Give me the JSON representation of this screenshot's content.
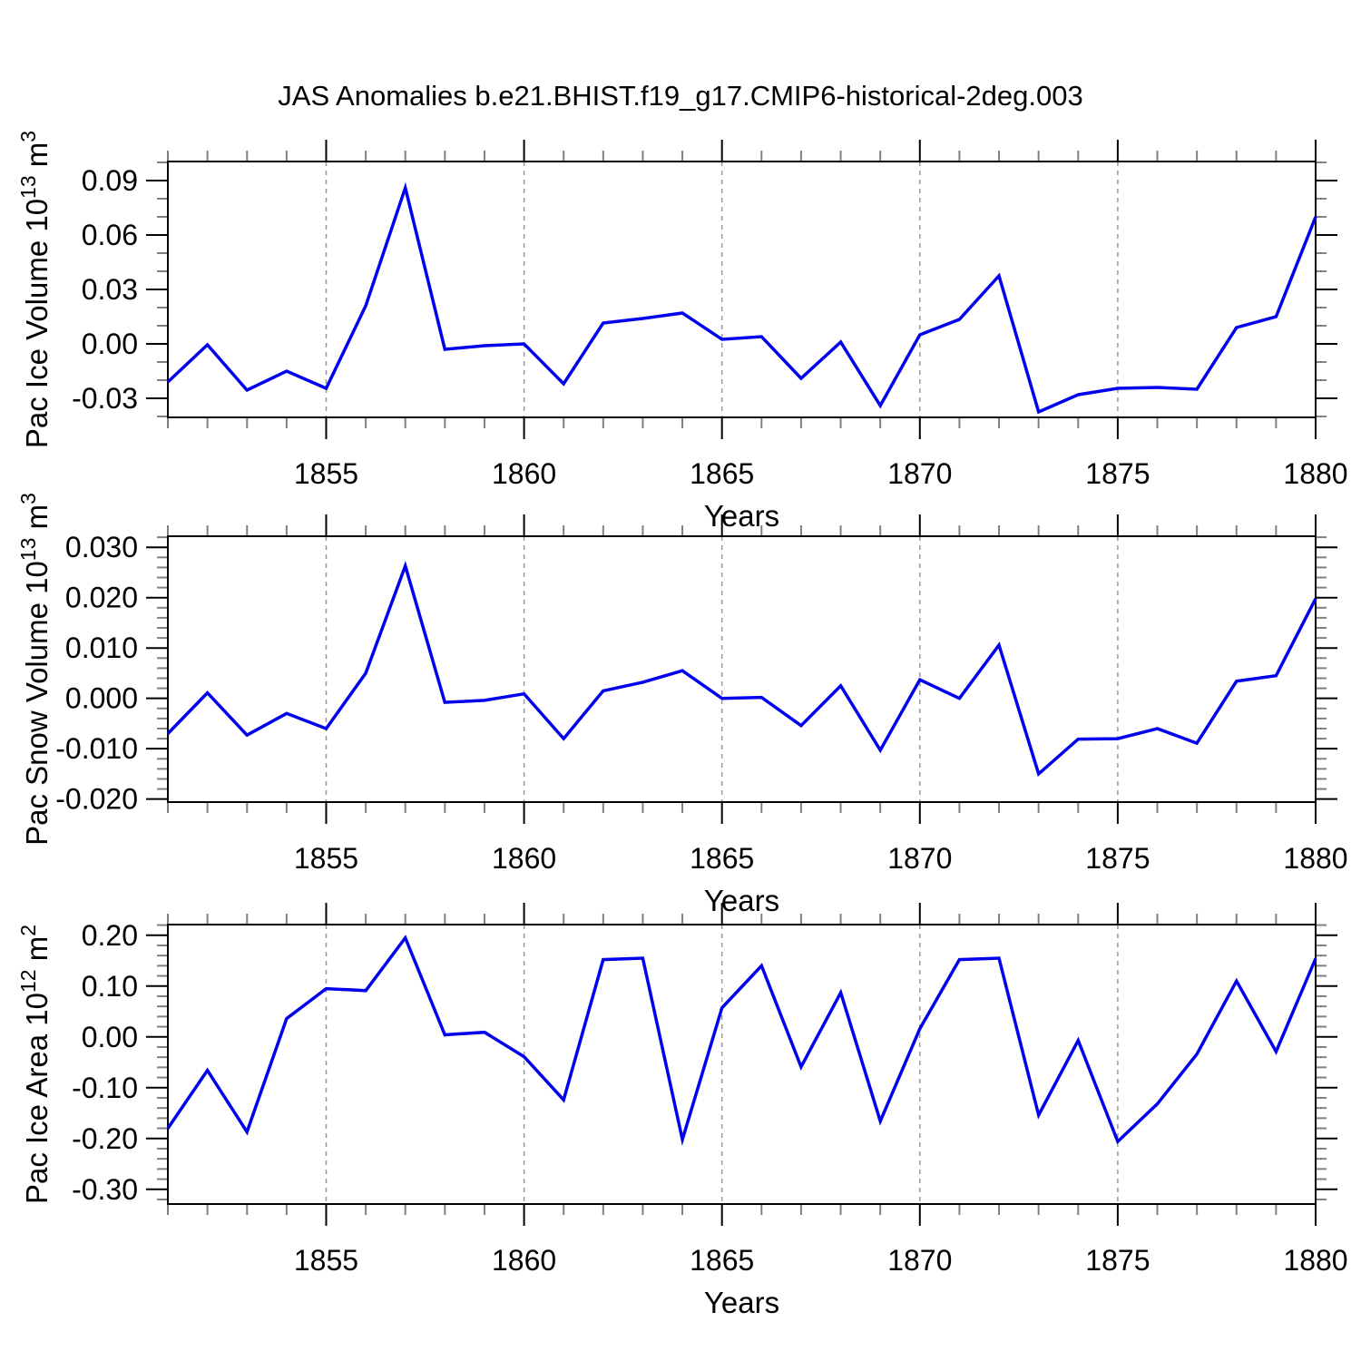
{
  "title": "JAS Anomalies b.e21.BHIST.f19_g17.CMIP6-historical-2deg.003",
  "line_color": "#0000ee",
  "gridline_color": "#999999",
  "frame_color": "#000000",
  "minor_tick_color": "#808080",
  "xlabel": "Years",
  "years": [
    1851,
    1852,
    1853,
    1854,
    1855,
    1856,
    1857,
    1858,
    1859,
    1860,
    1861,
    1862,
    1863,
    1864,
    1865,
    1866,
    1867,
    1868,
    1869,
    1870,
    1871,
    1872,
    1873,
    1874,
    1875,
    1876,
    1877,
    1878,
    1879,
    1880
  ],
  "xlim": [
    1851,
    1880
  ],
  "xticks_major": [
    1855,
    1860,
    1865,
    1870,
    1875,
    1880
  ],
  "xtick_labels": [
    "1855",
    "1860",
    "1865",
    "1870",
    "1875",
    "1880"
  ],
  "xminor_step": 1,
  "gridline_years": [
    1855,
    1860,
    1865,
    1870,
    1875
  ],
  "chart_data": [
    {
      "type": "line",
      "name": "pac-ice-volume",
      "ylabel_plain": "Pac Ice Volume 10^13 m^3",
      "ylabel_segments": [
        {
          "t": "Pac Ice Volume 10"
        },
        {
          "t": "13",
          "sup": true
        },
        {
          "t": " m"
        },
        {
          "t": "3",
          "sup": true
        }
      ],
      "ylim": [
        -0.0405,
        0.1005
      ],
      "ytick_values": [
        0.09,
        0.06,
        0.03,
        0.0,
        -0.03
      ],
      "ytick_labels": [
        "0.09",
        "0.06",
        "0.03",
        "0.00",
        "-0.03"
      ],
      "yminor_step": 0.01,
      "values": [
        -0.021,
        -0.0005,
        -0.0255,
        -0.015,
        -0.0245,
        0.021,
        0.086,
        -0.003,
        -0.001,
        0.0,
        -0.022,
        0.0115,
        0.014,
        0.017,
        0.0025,
        0.004,
        -0.019,
        0.001,
        -0.034,
        0.005,
        0.0135,
        0.0375,
        -0.0375,
        -0.028,
        -0.0245,
        -0.024,
        -0.025,
        0.009,
        0.015,
        0.07
      ]
    },
    {
      "type": "line",
      "name": "pac-snow-volume",
      "ylabel_plain": "Pac Snow Volume 10^13 m^3",
      "ylabel_segments": [
        {
          "t": "Pac Snow Volume 10"
        },
        {
          "t": "13",
          "sup": true
        },
        {
          "t": " m"
        },
        {
          "t": "3",
          "sup": true
        }
      ],
      "ylim": [
        -0.0206,
        0.0322
      ],
      "ytick_values": [
        0.03,
        0.02,
        0.01,
        0.0,
        -0.01,
        -0.02
      ],
      "ytick_labels": [
        "0.030",
        "0.020",
        "0.010",
        "0.000",
        "-0.010",
        "-0.020"
      ],
      "yminor_step": 0.002,
      "values": [
        -0.007,
        0.0011,
        -0.0073,
        -0.003,
        -0.006,
        0.005,
        0.0263,
        -0.0008,
        -0.0004,
        0.0009,
        -0.008,
        0.0015,
        0.0032,
        0.0055,
        0.0,
        0.0002,
        -0.0054,
        0.0025,
        -0.0103,
        0.0037,
        0.0,
        0.0106,
        -0.015,
        -0.0081,
        -0.008,
        -0.006,
        -0.0089,
        0.0034,
        0.0045,
        0.0198
      ]
    },
    {
      "type": "line",
      "name": "pac-ice-area",
      "ylabel_plain": "Pac Ice Area 10^12 m^2",
      "ylabel_segments": [
        {
          "t": "Pac Ice Area 10"
        },
        {
          "t": "12",
          "sup": true
        },
        {
          "t": " m"
        },
        {
          "t": "2",
          "sup": true
        }
      ],
      "ylim": [
        -0.329,
        0.221
      ],
      "ytick_values": [
        0.2,
        0.1,
        0.0,
        -0.1,
        -0.2,
        -0.3
      ],
      "ytick_labels": [
        "0.20",
        "0.10",
        "0.00",
        "-0.10",
        "-0.20",
        "-0.30"
      ],
      "yminor_step": 0.02,
      "values": [
        -0.18,
        -0.066,
        -0.187,
        0.036,
        0.095,
        0.091,
        0.195,
        0.004,
        0.009,
        -0.039,
        -0.124,
        0.152,
        0.155,
        -0.202,
        0.057,
        0.14,
        -0.059,
        0.087,
        -0.166,
        0.016,
        0.152,
        0.155,
        -0.154,
        -0.007,
        -0.206,
        -0.132,
        -0.034,
        0.11,
        -0.029,
        0.154
      ]
    }
  ]
}
